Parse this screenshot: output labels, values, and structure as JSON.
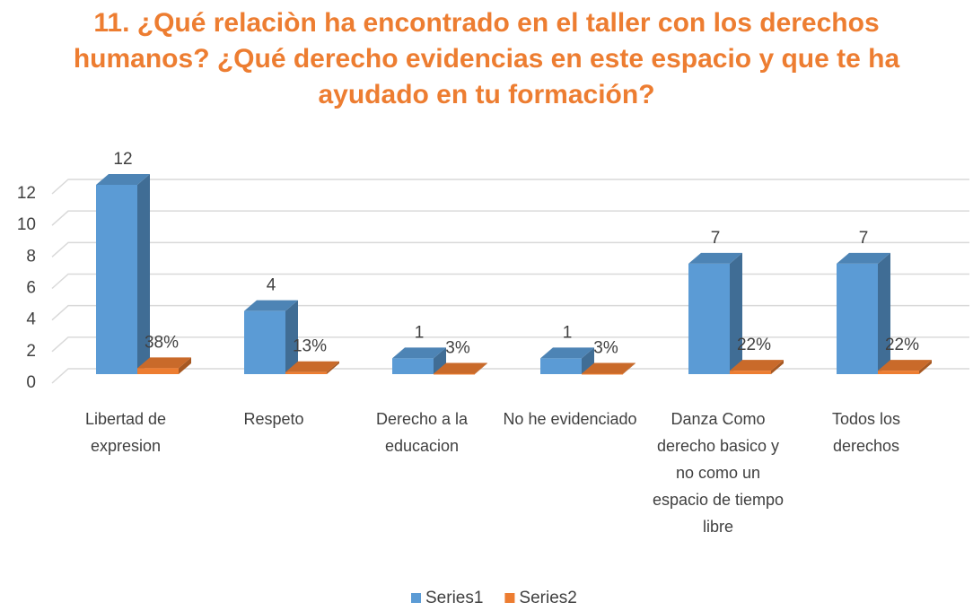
{
  "chart_data": {
    "type": "bar3d",
    "title": "11. ¿Qué relaciòn ha encontrado en el taller con los derechos humanos? ¿Qué derecho  evidencias en este espacio y que te ha ayudado en tu formación?",
    "categories": [
      "Libertad de expresion",
      "Respeto",
      "Derecho a la educacion",
      "No he evidenciado",
      "Danza Como derecho basico y no como un espacio de tiempo libre",
      "Todos los derechos"
    ],
    "series": [
      {
        "name": "Series1",
        "color": "#5b9bd5",
        "values": [
          12,
          4,
          1,
          1,
          7,
          7
        ]
      },
      {
        "name": "Series2",
        "color": "#ed7d31",
        "values": [
          0.38,
          0.13,
          0.03,
          0.03,
          0.22,
          0.22
        ],
        "value_labels": [
          "38%",
          "13%",
          "3%",
          "3%",
          "22%",
          "22%"
        ]
      }
    ],
    "ylim": [
      0,
      12
    ],
    "yticks": [
      0,
      2,
      4,
      6,
      8,
      10,
      12
    ],
    "grid": true,
    "legend": "bottom"
  }
}
